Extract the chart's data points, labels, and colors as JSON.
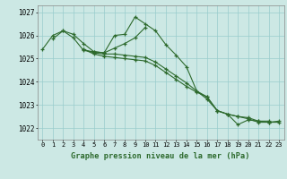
{
  "title": "Graphe pression niveau de la mer (hPa)",
  "xlabel_hours": [
    0,
    1,
    2,
    3,
    4,
    5,
    6,
    7,
    8,
    9,
    10,
    11,
    12,
    13,
    14,
    15,
    16,
    17,
    18,
    19,
    20,
    21,
    22,
    23
  ],
  "ylim": [
    1021.5,
    1027.3
  ],
  "yticks": [
    1022,
    1023,
    1024,
    1025,
    1026,
    1027
  ],
  "line_color": "#2d6a2d",
  "bg_color": "#cce8e4",
  "grid_color": "#99cccc",
  "lines": [
    [
      1025.4,
      1026.0,
      1026.2,
      1025.9,
      1025.35,
      1025.3,
      1025.25,
      1026.0,
      1026.05,
      1026.8,
      1026.5,
      1026.2,
      1025.6,
      1025.15,
      1024.65,
      1023.6,
      1023.25,
      1022.75,
      1022.6,
      1022.15,
      1022.35,
      1022.3,
      1022.3,
      null
    ],
    [
      null,
      1025.85,
      1026.2,
      1026.05,
      1025.65,
      1025.3,
      1025.25,
      1025.45,
      1025.65,
      1025.9,
      1026.35,
      null,
      null,
      null,
      null,
      null,
      null,
      null,
      null,
      null,
      null,
      null,
      null,
      null
    ],
    [
      null,
      null,
      null,
      null,
      1025.4,
      1025.25,
      1025.2,
      1025.2,
      1025.15,
      1025.1,
      1025.05,
      1024.85,
      1024.55,
      1024.25,
      1023.95,
      1023.6,
      1023.35,
      1022.75,
      1022.6,
      1022.5,
      1022.45,
      1022.3,
      1022.25,
      1022.3
    ],
    [
      null,
      null,
      null,
      null,
      1025.4,
      1025.2,
      1025.1,
      1025.05,
      1025.0,
      1024.95,
      1024.9,
      1024.7,
      1024.4,
      1024.1,
      1023.8,
      1023.55,
      1023.35,
      1022.75,
      1022.6,
      1022.5,
      1022.4,
      1022.25,
      1022.25,
      1022.25
    ]
  ]
}
